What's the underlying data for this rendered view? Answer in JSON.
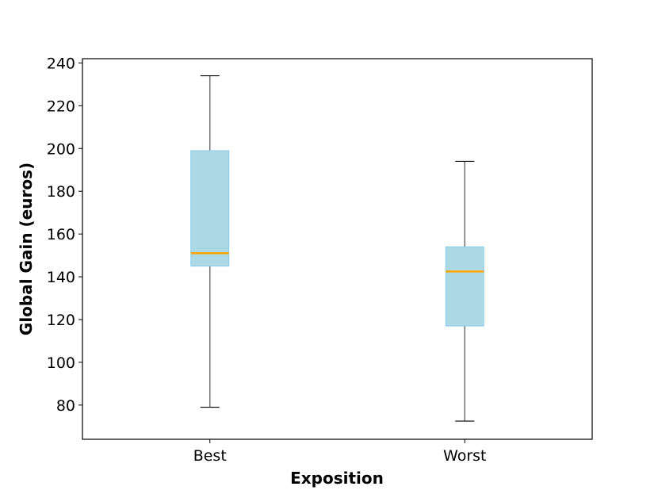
{
  "chart_data": {
    "type": "box",
    "x_label": "Exposition",
    "y_label": "Global Gain (euros)",
    "categories": [
      "Best",
      "Worst"
    ],
    "min": [
      79,
      72.5
    ],
    "q1": [
      145,
      117
    ],
    "median": [
      151,
      142.5
    ],
    "q3": [
      199,
      154
    ],
    "max": [
      234,
      194
    ],
    "box_color": "#add8e6",
    "box_edge_color": "#87ceeb",
    "median_color": "#ffa500",
    "whisker_color": "#707070",
    "ylim": [
      64,
      242
    ],
    "yticks": [
      80,
      100,
      120,
      140,
      160,
      180,
      200,
      220,
      240
    ]
  }
}
